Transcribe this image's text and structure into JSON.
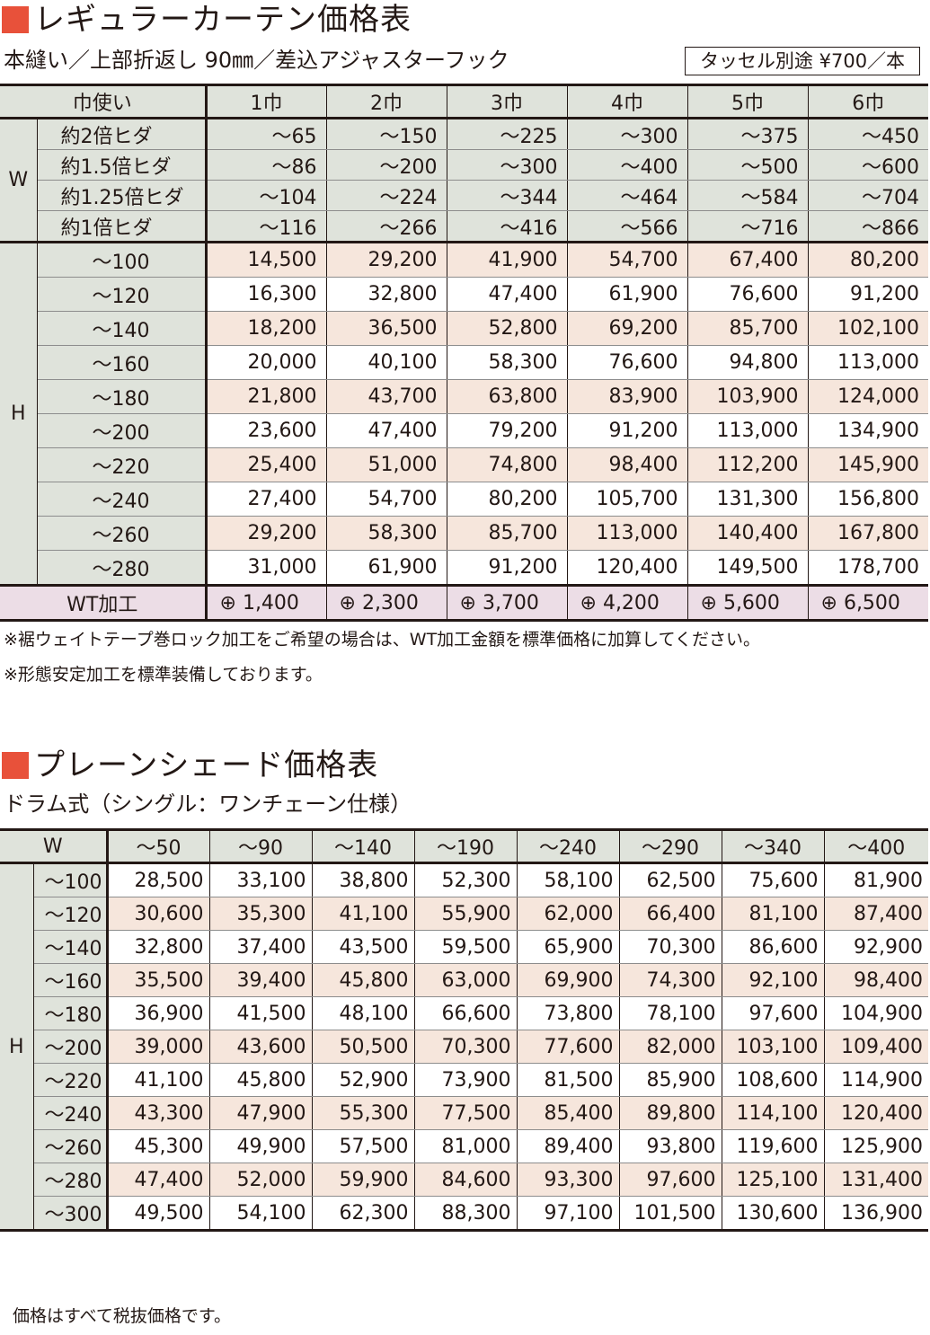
{
  "section1": {
    "title": "レギュラーカーテン価格表",
    "subtitle": "本縫い／上部折返し 90㎜／差込アジャスターフック",
    "tassel": "タッセル別途 ¥700／本",
    "header": [
      "巾使い",
      "1巾",
      "2巾",
      "3巾",
      "4巾",
      "5巾",
      "6巾"
    ],
    "w_group": "W",
    "w_rows": [
      {
        "label": "約2倍ヒダ",
        "values": [
          "～65",
          "～150",
          "～225",
          "～300",
          "～375",
          "～450"
        ]
      },
      {
        "label": "約1.5倍ヒダ",
        "values": [
          "～86",
          "～200",
          "～300",
          "～400",
          "～500",
          "～600"
        ]
      },
      {
        "label": "約1.25倍ヒダ",
        "values": [
          "～104",
          "～224",
          "～344",
          "～464",
          "～584",
          "～704"
        ]
      },
      {
        "label": "約1倍ヒダ",
        "values": [
          "～116",
          "～266",
          "～416",
          "～566",
          "～716",
          "～866"
        ]
      }
    ],
    "h_group": "H",
    "h_rows": [
      {
        "label": "～100",
        "values": [
          "14,500",
          "29,200",
          "41,900",
          "54,700",
          "67,400",
          "80,200"
        ]
      },
      {
        "label": "～120",
        "values": [
          "16,300",
          "32,800",
          "47,400",
          "61,900",
          "76,600",
          "91,200"
        ]
      },
      {
        "label": "～140",
        "values": [
          "18,200",
          "36,500",
          "52,800",
          "69,200",
          "85,700",
          "102,100"
        ]
      },
      {
        "label": "～160",
        "values": [
          "20,000",
          "40,100",
          "58,300",
          "76,600",
          "94,800",
          "113,000"
        ]
      },
      {
        "label": "～180",
        "values": [
          "21,800",
          "43,700",
          "63,800",
          "83,900",
          "103,900",
          "124,000"
        ]
      },
      {
        "label": "～200",
        "values": [
          "23,600",
          "47,400",
          "79,200",
          "91,200",
          "113,000",
          "134,900"
        ]
      },
      {
        "label": "～220",
        "values": [
          "25,400",
          "51,000",
          "74,800",
          "98,400",
          "112,200",
          "145,900"
        ]
      },
      {
        "label": "～240",
        "values": [
          "27,400",
          "54,700",
          "80,200",
          "105,700",
          "131,300",
          "156,800"
        ]
      },
      {
        "label": "～260",
        "values": [
          "29,200",
          "58,300",
          "85,700",
          "113,000",
          "140,400",
          "167,800"
        ]
      },
      {
        "label": "～280",
        "values": [
          "31,000",
          "61,900",
          "91,200",
          "120,400",
          "149,500",
          "178,700"
        ]
      }
    ],
    "wt_row": {
      "label": "WT加工",
      "values": [
        "⊕ 1,400",
        "⊕ 2,300",
        "⊕ 3,700",
        "⊕ 4,200",
        "⊕ 5,600",
        "⊕ 6,500"
      ]
    },
    "notes": [
      "※裾ウェイトテープ巻ロック加工をご希望の場合は、WT加工金額を標準価格に加算してください。",
      "※形態安定加工を標準装備しております。"
    ]
  },
  "section2": {
    "title": "プレーンシェード価格表",
    "subtitle": "ドラム式（シングル：ワンチェーン仕様）",
    "w_label": "W",
    "w_cols": [
      "～50",
      "～90",
      "～140",
      "～190",
      "～240",
      "～290",
      "～340",
      "～400"
    ],
    "h_group": "H",
    "rows": [
      {
        "label": "～100",
        "values": [
          "28,500",
          "33,100",
          "38,800",
          "52,300",
          "58,100",
          "62,500",
          "75,600",
          "81,900"
        ]
      },
      {
        "label": "～120",
        "values": [
          "30,600",
          "35,300",
          "41,100",
          "55,900",
          "62,000",
          "66,400",
          "81,100",
          "87,400"
        ]
      },
      {
        "label": "～140",
        "values": [
          "32,800",
          "37,400",
          "43,500",
          "59,500",
          "65,900",
          "70,300",
          "86,600",
          "92,900"
        ]
      },
      {
        "label": "～160",
        "values": [
          "35,500",
          "39,400",
          "45,800",
          "63,000",
          "69,900",
          "74,300",
          "92,100",
          "98,400"
        ]
      },
      {
        "label": "～180",
        "values": [
          "36,900",
          "41,500",
          "48,100",
          "66,600",
          "73,800",
          "78,100",
          "97,600",
          "104,900"
        ]
      },
      {
        "label": "～200",
        "values": [
          "39,000",
          "43,600",
          "50,500",
          "70,300",
          "77,600",
          "82,000",
          "103,100",
          "109,400"
        ]
      },
      {
        "label": "～220",
        "values": [
          "41,100",
          "45,800",
          "52,900",
          "73,900",
          "81,500",
          "85,900",
          "108,600",
          "114,900"
        ]
      },
      {
        "label": "～240",
        "values": [
          "43,300",
          "47,900",
          "55,300",
          "77,500",
          "85,400",
          "89,800",
          "114,100",
          "120,400"
        ]
      },
      {
        "label": "～260",
        "values": [
          "45,300",
          "49,900",
          "57,500",
          "81,000",
          "89,400",
          "93,800",
          "119,600",
          "125,900"
        ]
      },
      {
        "label": "～280",
        "values": [
          "47,400",
          "52,000",
          "59,900",
          "84,600",
          "93,300",
          "97,600",
          "125,100",
          "131,400"
        ]
      },
      {
        "label": "～300",
        "values": [
          "49,500",
          "54,100",
          "62,300",
          "88,300",
          "97,100",
          "101,500",
          "130,600",
          "136,900"
        ]
      }
    ],
    "footer_note": "価格はすべて税抜価格です。"
  }
}
